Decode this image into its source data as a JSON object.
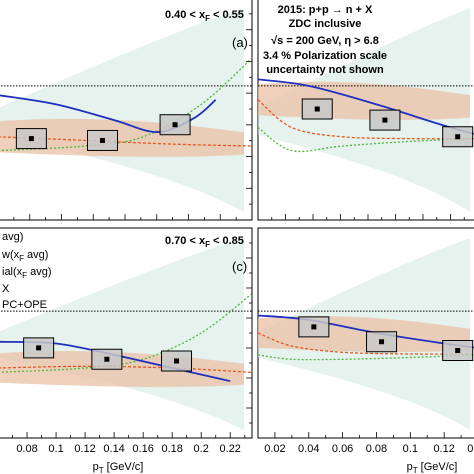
{
  "figure": {
    "annotation_lines": [
      "2015: p+p → n + X",
      "ZDC inclusive",
      "√s = 200 GeV, η > 6.8",
      "3.4 % Polarization scale",
      "uncertainty not shown"
    ],
    "legend_entries": [
      "avg)",
      "w(x  avg)",
      "ial(x  avg)",
      "X",
      "PC+OPE"
    ]
  },
  "colors": {
    "theory_line": "#1f2fc0",
    "dashed_orange": "#e8571c",
    "dashed_green": "#4fb83a",
    "band_orange": "#e9c0a6",
    "band_green": "#cfe8df",
    "box_fill": "#c8c8c8",
    "reference_line": "#000000"
  },
  "chart_data": [
    {
      "type": "scatter",
      "panel_label": "(a)",
      "range_label": "0.40 < x  < 0.55",
      "x": [
        0.083,
        0.132,
        0.182
      ],
      "y": [
        0.18,
        0.16,
        0.33
      ],
      "xlim": [
        0.06,
        0.235
      ],
      "ylim": [
        -0.7,
        1.7
      ],
      "reference_y": 0.75,
      "curves": {
        "theory_line": {
          "x": [
            0.06,
            0.1,
            0.14,
            0.17,
            0.195,
            0.21
          ],
          "y": [
            0.65,
            0.55,
            0.38,
            0.25,
            0.4,
            0.6
          ]
        },
        "dashed_orange": {
          "x": [
            0.06,
            0.12,
            0.18,
            0.235
          ],
          "y": [
            0.2,
            0.16,
            0.12,
            0.1
          ]
        },
        "dashed_green": {
          "x": [
            0.06,
            0.12,
            0.16,
            0.2,
            0.235
          ],
          "y": [
            0.05,
            0.1,
            0.2,
            0.55,
            1.05
          ]
        }
      }
    },
    {
      "type": "scatter",
      "panel_label": "",
      "range_label": "",
      "x": [
        0.045,
        0.085,
        0.128
      ],
      "y": [
        0.5,
        0.38,
        0.2
      ],
      "xlim": [
        0.01,
        0.14
      ],
      "ylim": [
        -0.7,
        1.7
      ],
      "reference_y": 0.75,
      "curves": {
        "theory_line": {
          "x": [
            0.01,
            0.04,
            0.08,
            0.12,
            0.14
          ],
          "y": [
            0.82,
            0.75,
            0.55,
            0.32,
            0.22
          ]
        },
        "dashed_orange": {
          "x": [
            0.01,
            0.03,
            0.06,
            0.1,
            0.14
          ],
          "y": [
            0.6,
            0.3,
            0.2,
            0.18,
            0.18
          ]
        },
        "dashed_green": {
          "x": [
            0.01,
            0.03,
            0.06,
            0.1,
            0.14
          ],
          "y": [
            0.3,
            0.05,
            0.1,
            0.15,
            0.18
          ]
        }
      }
    },
    {
      "type": "scatter",
      "panel_label": "(c)",
      "range_label": "0.70 < x  < 0.85",
      "x": [
        0.088,
        0.135,
        0.183
      ],
      "y": [
        0.33,
        0.2,
        0.18
      ],
      "xlim": [
        0.06,
        0.235
      ],
      "ylim": [
        -0.7,
        1.7
      ],
      "reference_y": 0.75,
      "xlabel": "p  [GeV/c]",
      "x_ticks": [
        "0.08",
        "0.1",
        "0.12",
        "0.14",
        "0.16",
        "0.18",
        "0.2",
        "0.22"
      ],
      "curves": {
        "theory_line": {
          "x": [
            0.06,
            0.1,
            0.14,
            0.18,
            0.22
          ],
          "y": [
            0.4,
            0.38,
            0.25,
            0.1,
            -0.05
          ]
        },
        "dashed_orange": {
          "x": [
            0.06,
            0.12,
            0.18,
            0.235
          ],
          "y": [
            0.1,
            0.12,
            0.1,
            0.05
          ]
        },
        "dashed_green": {
          "x": [
            0.06,
            0.12,
            0.16,
            0.2,
            0.235
          ],
          "y": [
            0.05,
            0.1,
            0.2,
            0.5,
            0.95
          ]
        }
      }
    },
    {
      "type": "scatter",
      "panel_label": "",
      "range_label": "",
      "x": [
        0.043,
        0.083,
        0.128
      ],
      "y": [
        0.57,
        0.4,
        0.3
      ],
      "xlim": [
        0.01,
        0.14
      ],
      "ylim": [
        -0.7,
        1.7
      ],
      "reference_y": 0.75,
      "xlabel": "p  [GeV/c]",
      "x_ticks": [
        "0.02",
        "0.04",
        "0.06",
        "0.08",
        "0.1",
        "0.12",
        "0.14"
      ],
      "curves": {
        "theory_line": {
          "x": [
            0.01,
            0.04,
            0.08,
            0.12,
            0.14
          ],
          "y": [
            0.7,
            0.65,
            0.5,
            0.38,
            0.33
          ]
        },
        "dashed_orange": {
          "x": [
            0.01,
            0.03,
            0.06,
            0.1,
            0.14
          ],
          "y": [
            0.5,
            0.35,
            0.28,
            0.26,
            0.26
          ]
        },
        "dashed_green": {
          "x": [
            0.01,
            0.03,
            0.06,
            0.1,
            0.14
          ],
          "y": [
            0.25,
            0.2,
            0.2,
            0.22,
            0.25
          ]
        }
      }
    }
  ]
}
